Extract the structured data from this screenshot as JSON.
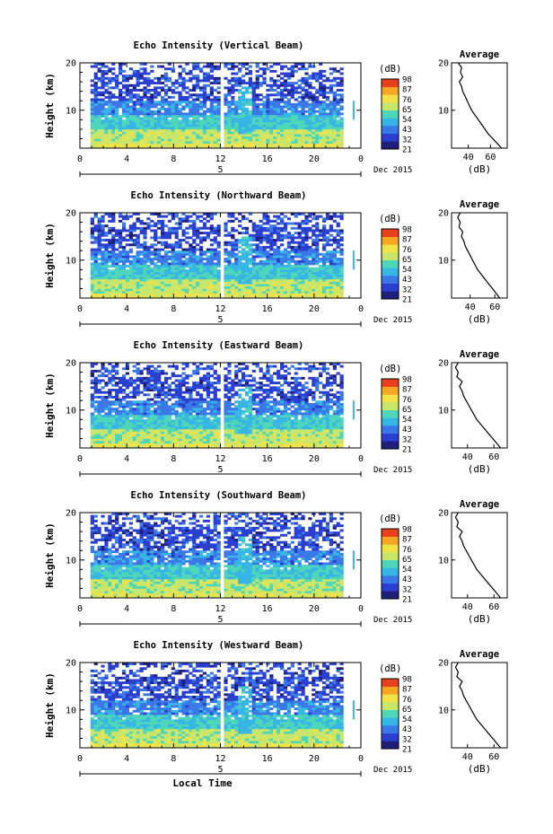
{
  "chart_data": [
    {
      "type": "heatmap",
      "title": "Echo Intensity (Vertical Beam)",
      "ylabel": "Height (km)",
      "yticks": [
        10,
        20
      ],
      "xticks": [
        "0",
        "4",
        "8",
        "12",
        "16",
        "20",
        "0"
      ],
      "date_label": "Dec 2015",
      "day_label": "5",
      "colorbar_unit": "(dB)",
      "colorbar_ticks": [
        21,
        32,
        43,
        54,
        65,
        76,
        87,
        98
      ],
      "avg_title": "Average",
      "avg_xlabel": "(dB)",
      "avg_xticks": [
        40,
        60
      ],
      "avg_xlim": [
        25,
        75
      ],
      "avg_profile": {
        "height": [
          1,
          2,
          3,
          4,
          5,
          6,
          7,
          8,
          9,
          10,
          11,
          12,
          13,
          14,
          15,
          16,
          17,
          18,
          19,
          20
        ],
        "value": [
          74,
          70,
          66,
          62,
          58,
          55,
          52,
          49,
          46,
          43,
          41,
          39,
          37,
          35,
          34,
          32,
          35,
          33,
          34,
          31
        ]
      }
    },
    {
      "type": "heatmap",
      "title": "Echo Intensity (Northward Beam)",
      "ylabel": "Height (km)",
      "yticks": [
        10,
        20
      ],
      "xticks": [
        "0",
        "4",
        "8",
        "12",
        "16",
        "20",
        "0"
      ],
      "date_label": "Dec 2015",
      "day_label": "5",
      "colorbar_unit": "(dB)",
      "colorbar_ticks": [
        21,
        32,
        43,
        54,
        65,
        76,
        87,
        98
      ],
      "avg_title": "Average",
      "avg_xlabel": "(dB)",
      "avg_xticks": [
        40,
        60
      ],
      "avg_xlim": [
        25,
        70
      ],
      "avg_profile": {
        "height": [
          1,
          2,
          3,
          4,
          5,
          6,
          7,
          8,
          9,
          10,
          11,
          12,
          13,
          14,
          15,
          16,
          17,
          18,
          19,
          20
        ],
        "value": [
          68,
          64,
          61,
          58,
          55,
          52,
          49,
          46,
          44,
          42,
          40,
          38,
          36,
          35,
          33,
          34,
          31,
          32,
          30,
          32
        ]
      }
    },
    {
      "type": "heatmap",
      "title": "Echo Intensity (Eastward Beam)",
      "ylabel": "Height (km)",
      "yticks": [
        10,
        20
      ],
      "xticks": [
        "0",
        "4",
        "8",
        "12",
        "16",
        "20",
        "0"
      ],
      "date_label": "Dec 2015",
      "day_label": "5",
      "colorbar_unit": "(dB)",
      "colorbar_ticks": [
        21,
        32,
        43,
        54,
        65,
        76,
        87,
        98
      ],
      "avg_title": "Average",
      "avg_xlabel": "(dB)",
      "avg_xticks": [
        40,
        60
      ],
      "avg_xlim": [
        28,
        70
      ],
      "avg_profile": {
        "height": [
          1,
          2,
          3,
          4,
          5,
          6,
          7,
          8,
          9,
          10,
          11,
          12,
          13,
          14,
          15,
          16,
          17,
          18,
          19,
          20
        ],
        "value": [
          68,
          65,
          62,
          59,
          56,
          53,
          50,
          47,
          45,
          43,
          41,
          39,
          37,
          36,
          34,
          36,
          32,
          33,
          31,
          33
        ]
      }
    },
    {
      "type": "heatmap",
      "title": "Echo Intensity (Southward Beam)",
      "ylabel": "Height (km)",
      "yticks": [
        10,
        20
      ],
      "xticks": [
        "0",
        "4",
        "8",
        "12",
        "16",
        "20",
        "0"
      ],
      "date_label": "Dec 2015",
      "day_label": "5",
      "colorbar_unit": "(dB)",
      "colorbar_ticks": [
        21,
        32,
        43,
        54,
        65,
        76,
        87,
        98
      ],
      "avg_title": "Average",
      "avg_xlabel": "(dB)",
      "avg_xticks": [
        40,
        60
      ],
      "avg_xlim": [
        28,
        70
      ],
      "avg_profile": {
        "height": [
          1,
          2,
          3,
          4,
          5,
          6,
          7,
          8,
          9,
          10,
          11,
          12,
          13,
          14,
          15,
          16,
          17,
          18,
          19,
          20
        ],
        "value": [
          68,
          65,
          62,
          59,
          56,
          53,
          50,
          47,
          45,
          43,
          41,
          39,
          37,
          36,
          34,
          36,
          32,
          33,
          31,
          33
        ]
      }
    },
    {
      "type": "heatmap",
      "title": "Echo Intensity (Westward Beam)",
      "ylabel": "Height (km)",
      "yticks": [
        10,
        20
      ],
      "xticks": [
        "0",
        "4",
        "8",
        "12",
        "16",
        "20",
        "0"
      ],
      "xlabel": "Local Time",
      "date_label": "Dec 2015",
      "day_label": "5",
      "colorbar_unit": "(dB)",
      "colorbar_ticks": [
        21,
        32,
        43,
        54,
        65,
        76,
        87,
        98
      ],
      "avg_title": "Average",
      "avg_xlabel": "(dB)",
      "avg_xticks": [
        40,
        60
      ],
      "avg_xlim": [
        28,
        70
      ],
      "avg_profile": {
        "height": [
          1,
          2,
          3,
          4,
          5,
          6,
          7,
          8,
          9,
          10,
          11,
          12,
          13,
          14,
          15,
          16,
          17,
          18,
          19,
          20
        ],
        "value": [
          68,
          65,
          62,
          59,
          56,
          53,
          50,
          47,
          45,
          43,
          41,
          39,
          37,
          36,
          34,
          36,
          32,
          33,
          31,
          33
        ]
      }
    }
  ],
  "colors": {
    "colormap": [
      "#1f1f7a",
      "#2a3fcf",
      "#3a78e8",
      "#37b6e6",
      "#4fd6b8",
      "#c8e66a",
      "#f2e24a",
      "#f5a623",
      "#e8401c"
    ],
    "axes": "#000000",
    "gap": "#ffffff"
  }
}
